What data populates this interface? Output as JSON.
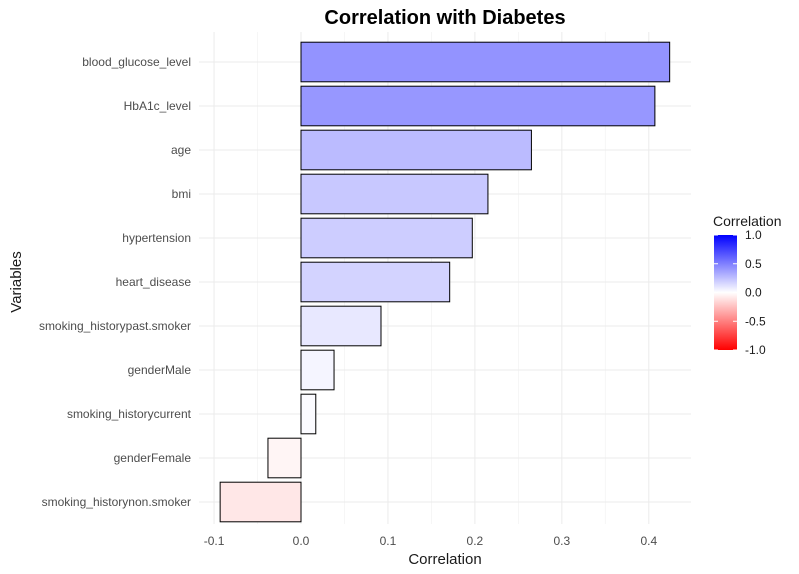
{
  "chart_data": {
    "type": "bar",
    "orientation": "horizontal",
    "title": "Correlation with Diabetes",
    "xlabel": "Correlation",
    "ylabel": "Variables",
    "xlim": [
      -0.1,
      0.45
    ],
    "xticks": [
      -0.1,
      0.0,
      0.1,
      0.2,
      0.3,
      0.4
    ],
    "xtick_labels": [
      "-0.1",
      "0.0",
      "0.1",
      "0.2",
      "0.3",
      "0.4"
    ],
    "grid": true,
    "categories": [
      "blood_glucose_level",
      "HbA1c_level",
      "age",
      "bmi",
      "hypertension",
      "heart_disease",
      "smoking_historypast.smoker",
      "genderMale",
      "smoking_historycurrent",
      "genderFemale",
      "smoking_historynon.smoker"
    ],
    "values": [
      0.424,
      0.407,
      0.265,
      0.215,
      0.197,
      0.171,
      0.092,
      0.038,
      0.017,
      -0.038,
      -0.093
    ],
    "color_scale": {
      "low": "#ff0000",
      "mid": "#ffffff",
      "high": "#0000ff",
      "domain": [
        -1,
        1
      ]
    },
    "legend": {
      "title": "Correlation",
      "position": "right",
      "ticks": [
        1.0,
        0.5,
        0.0,
        -0.5,
        -1.0
      ],
      "tick_labels": [
        "1.0",
        "0.5",
        "0.0",
        "-0.5",
        "-1.0"
      ]
    }
  }
}
